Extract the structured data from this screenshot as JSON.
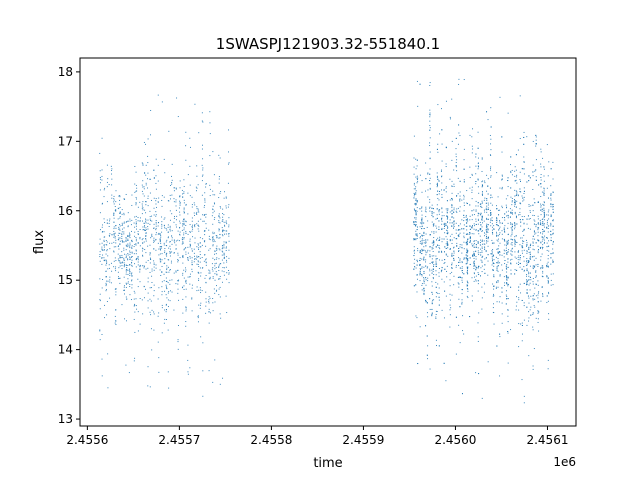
{
  "chart_data": {
    "type": "scatter",
    "title": "1SWASPJ121903.32-551840.1",
    "xlabel": "time",
    "ylabel": "flux",
    "x_offset_label": "1e6",
    "xlim": [
      2455592.0,
      2456131.0
    ],
    "ylim": [
      12.9,
      18.2
    ],
    "x_ticks": [
      2455600,
      2455700,
      2455800,
      2455900,
      2456000,
      2456100
    ],
    "x_tick_labels": [
      "2.4556",
      "2.4557",
      "2.4558",
      "2.4559",
      "2.4560",
      "2.4561"
    ],
    "y_ticks": [
      13,
      14,
      15,
      16,
      17,
      18
    ],
    "y_tick_labels": [
      "13",
      "14",
      "15",
      "16",
      "17",
      "18"
    ],
    "grid": false,
    "marker_color": "#1f77b4",
    "series": [
      {
        "name": "",
        "segments": [
          {
            "x_start": 2455613,
            "x_end": 2455755,
            "y_center": 15.55,
            "y_spread": 0.45,
            "y_min": 13.25,
            "y_max": 17.75,
            "points": 1500
          },
          {
            "x_start": 2455954,
            "x_end": 2456107,
            "y_center": 15.6,
            "y_spread": 0.5,
            "y_min": 13.1,
            "y_max": 17.95,
            "points": 2500
          }
        ]
      }
    ]
  }
}
